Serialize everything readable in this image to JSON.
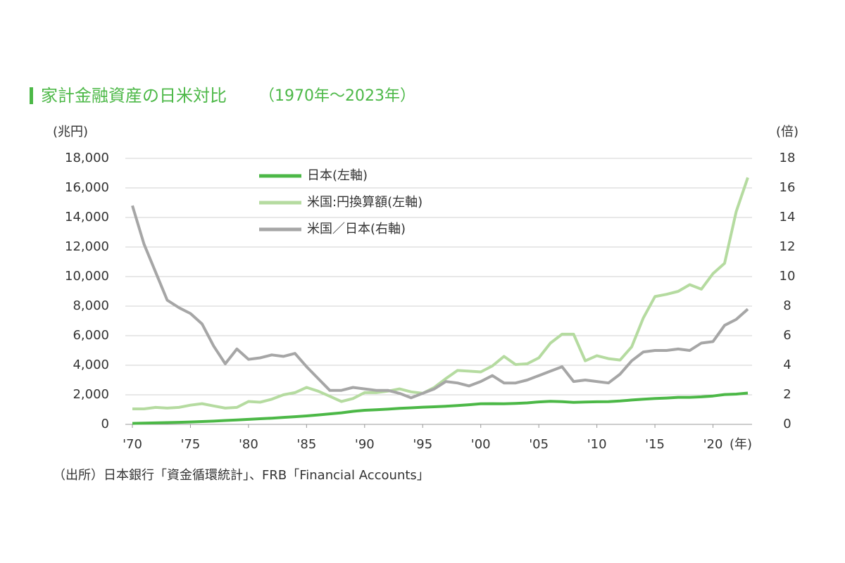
{
  "chart_data": {
    "type": "line",
    "title": "家計金融資産の日米対比",
    "subtitle": "（1970年～2023年）",
    "ylabel": "(兆円)",
    "y2label": "(倍)",
    "xlabel": "(年)",
    "source": "（出所）日本銀行「資金循環統計」、FRB「Financial Accounts」",
    "x": [
      1970,
      1971,
      1972,
      1973,
      1974,
      1975,
      1976,
      1977,
      1978,
      1979,
      1980,
      1981,
      1982,
      1983,
      1984,
      1985,
      1986,
      1987,
      1988,
      1989,
      1990,
      1991,
      1992,
      1993,
      1994,
      1995,
      1996,
      1997,
      1998,
      1999,
      2000,
      2001,
      2002,
      2003,
      2004,
      2005,
      2006,
      2007,
      2008,
      2009,
      2010,
      2011,
      2012,
      2013,
      2014,
      2015,
      2016,
      2017,
      2018,
      2019,
      2020,
      2021,
      2022,
      2023
    ],
    "xlim": [
      1970,
      2023
    ],
    "xticks": [
      {
        "value": 1970,
        "label": "'70"
      },
      {
        "value": 1975,
        "label": "'75"
      },
      {
        "value": 1980,
        "label": "'80"
      },
      {
        "value": 1985,
        "label": "'85"
      },
      {
        "value": 1990,
        "label": "'90"
      },
      {
        "value": 1995,
        "label": "'95"
      },
      {
        "value": 2000,
        "label": "'00"
      },
      {
        "value": 2005,
        "label": "'05"
      },
      {
        "value": 2010,
        "label": "'10"
      },
      {
        "value": 2015,
        "label": "'15"
      },
      {
        "value": 2020,
        "label": "'20"
      }
    ],
    "ylim": [
      0,
      18000
    ],
    "yticks": [
      0,
      {
        "value": 2000,
        "label": "2,000"
      },
      {
        "value": 4000,
        "label": "4,000"
      },
      {
        "value": 6000,
        "label": "6,000"
      },
      {
        "value": 8000,
        "label": "8,000"
      },
      {
        "value": 10000,
        "label": "10,000"
      },
      {
        "value": 12000,
        "label": "12,000"
      },
      {
        "value": 14000,
        "label": "14,000"
      },
      {
        "value": 16000,
        "label": "16,000"
      },
      {
        "value": 18000,
        "label": "18,000"
      }
    ],
    "y2lim": [
      0,
      18
    ],
    "y2ticks": [
      0,
      2,
      4,
      6,
      8,
      10,
      12,
      14,
      16,
      18
    ],
    "grid": true,
    "series": [
      {
        "name": "日本(左軸)",
        "color": "#4cb847",
        "values": [
          67,
          80,
          100,
          120,
          140,
          160,
          190,
          220,
          260,
          300,
          340,
          380,
          420,
          470,
          520,
          570,
          640,
          710,
          780,
          880,
          950,
          990,
          1030,
          1080,
          1120,
          1160,
          1190,
          1230,
          1270,
          1330,
          1390,
          1400,
          1390,
          1420,
          1450,
          1520,
          1560,
          1540,
          1490,
          1510,
          1530,
          1540,
          1580,
          1650,
          1700,
          1750,
          1780,
          1830,
          1830,
          1860,
          1920,
          2020,
          2050,
          2120
        ]
      },
      {
        "name": "米国:円換算額(左軸)",
        "color": "#b5dba0",
        "values": [
          1050,
          1050,
          1150,
          1100,
          1150,
          1300,
          1400,
          1250,
          1100,
          1150,
          1550,
          1500,
          1700,
          2000,
          2150,
          2500,
          2250,
          1900,
          1550,
          1750,
          2150,
          2150,
          2250,
          2400,
          2200,
          2100,
          2500,
          3100,
          3650,
          3600,
          3550,
          3950,
          4600,
          4050,
          4100,
          4500,
          5500,
          6100,
          6100,
          4300,
          4650,
          4450,
          4350,
          5250,
          7200,
          8650,
          8800,
          9000,
          9450,
          9150,
          10200,
          10900,
          14400,
          16700
        ]
      },
      {
        "name": "米国／日本(右軸)",
        "color": "#a6a6a6",
        "axis": "y2",
        "values": [
          14.8,
          12.2,
          10.3,
          8.4,
          7.9,
          7.5,
          6.8,
          5.3,
          4.1,
          5.1,
          4.4,
          4.5,
          4.7,
          4.6,
          4.8,
          3.9,
          3.1,
          2.3,
          2.3,
          2.5,
          2.4,
          2.3,
          2.3,
          2.1,
          1.8,
          2.1,
          2.4,
          2.9,
          2.8,
          2.6,
          2.9,
          3.3,
          2.8,
          2.8,
          3.0,
          3.3,
          3.6,
          3.9,
          2.9,
          3.0,
          2.9,
          2.8,
          3.4,
          4.3,
          4.9,
          5.0,
          5.0,
          5.1,
          5.0,
          5.5,
          5.6,
          6.7,
          7.1,
          7.8
        ]
      }
    ]
  }
}
